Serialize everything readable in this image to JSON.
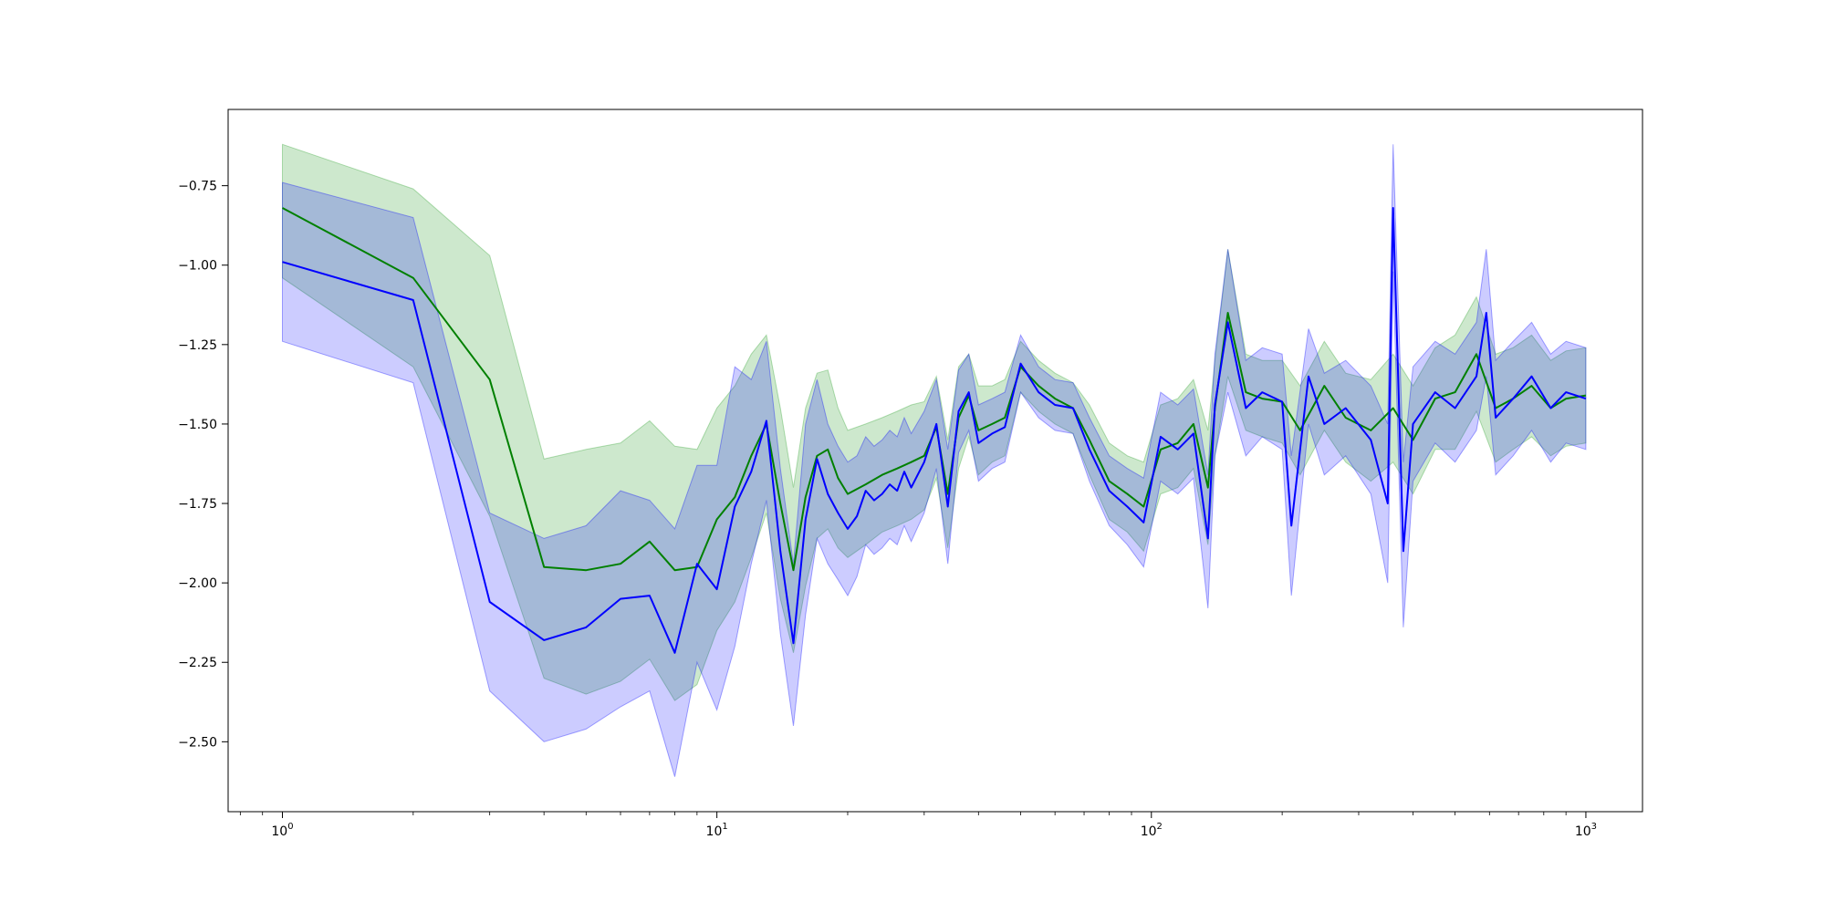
{
  "chart_data": {
    "type": "line",
    "title": "",
    "xlabel": "",
    "ylabel": "",
    "xscale": "log",
    "xlim": [
      0.75,
      1350
    ],
    "ylim": [
      -2.72,
      -0.51
    ],
    "grid": false,
    "legend": "none",
    "x_ticks": [
      {
        "value": 1,
        "base": "10",
        "exp": "0"
      },
      {
        "value": 10,
        "base": "10",
        "exp": "1"
      },
      {
        "value": 100,
        "base": "10",
        "exp": "2"
      },
      {
        "value": 1000,
        "base": "10",
        "exp": "3"
      }
    ],
    "y_ticks": [
      {
        "value": -0.75,
        "label": "−0.75"
      },
      {
        "value": -1.0,
        "label": "−1.00"
      },
      {
        "value": -1.25,
        "label": "−1.25"
      },
      {
        "value": -1.5,
        "label": "−1.50"
      },
      {
        "value": -1.75,
        "label": "−1.75"
      },
      {
        "value": -2.0,
        "label": "−2.00"
      },
      {
        "value": -2.25,
        "label": "−2.25"
      },
      {
        "value": -2.5,
        "label": "−2.50"
      }
    ],
    "series": [
      {
        "color": "#008000",
        "band_color": "#2ca02c",
        "band_opacity": 0.24,
        "x": [
          1,
          2,
          3,
          4,
          5,
          6,
          7,
          8,
          9,
          10,
          11,
          12,
          13,
          14,
          15,
          16,
          17,
          18,
          19,
          20,
          22,
          24,
          26,
          28,
          30,
          32,
          34,
          36,
          38,
          40,
          43,
          46,
          50,
          55,
          60,
          66,
          72,
          80,
          88,
          96,
          105,
          115,
          125,
          135,
          140,
          150,
          165,
          180,
          200,
          220,
          250,
          280,
          320,
          360,
          400,
          450,
          500,
          560,
          620,
          680,
          750,
          830,
          900,
          1000
        ],
        "y": [
          -0.82,
          -1.04,
          -1.36,
          -1.95,
          -1.96,
          -1.94,
          -1.87,
          -1.96,
          -1.95,
          -1.8,
          -1.73,
          -1.6,
          -1.5,
          -1.75,
          -1.96,
          -1.73,
          -1.6,
          -1.58,
          -1.67,
          -1.72,
          -1.69,
          -1.66,
          -1.64,
          -1.62,
          -1.6,
          -1.51,
          -1.72,
          -1.48,
          -1.41,
          -1.52,
          -1.5,
          -1.48,
          -1.32,
          -1.38,
          -1.42,
          -1.45,
          -1.55,
          -1.68,
          -1.72,
          -1.76,
          -1.58,
          -1.56,
          -1.5,
          -1.7,
          -1.45,
          -1.15,
          -1.4,
          -1.42,
          -1.43,
          -1.52,
          -1.38,
          -1.48,
          -1.52,
          -1.45,
          -1.55,
          -1.42,
          -1.4,
          -1.28,
          -1.45,
          -1.42,
          -1.38,
          -1.45,
          -1.42,
          -1.41
        ],
        "upper": [
          -0.62,
          -0.76,
          -0.97,
          -1.61,
          -1.58,
          -1.56,
          -1.49,
          -1.57,
          -1.58,
          -1.45,
          -1.38,
          -1.28,
          -1.22,
          -1.45,
          -1.7,
          -1.45,
          -1.34,
          -1.33,
          -1.45,
          -1.52,
          -1.5,
          -1.48,
          -1.46,
          -1.44,
          -1.43,
          -1.35,
          -1.55,
          -1.32,
          -1.28,
          -1.38,
          -1.38,
          -1.36,
          -1.24,
          -1.3,
          -1.34,
          -1.37,
          -1.44,
          -1.56,
          -1.6,
          -1.62,
          -1.44,
          -1.42,
          -1.36,
          -1.52,
          -1.3,
          -0.95,
          -1.28,
          -1.3,
          -1.3,
          -1.38,
          -1.24,
          -1.34,
          -1.36,
          -1.28,
          -1.38,
          -1.26,
          -1.22,
          -1.1,
          -1.28,
          -1.26,
          -1.22,
          -1.3,
          -1.27,
          -1.26
        ],
        "lower": [
          -1.04,
          -1.32,
          -1.79,
          -2.3,
          -2.35,
          -2.31,
          -2.24,
          -2.37,
          -2.32,
          -2.15,
          -2.06,
          -1.92,
          -1.78,
          -2.05,
          -2.22,
          -2.01,
          -1.86,
          -1.83,
          -1.89,
          -1.92,
          -1.88,
          -1.84,
          -1.82,
          -1.8,
          -1.77,
          -1.67,
          -1.89,
          -1.64,
          -1.54,
          -1.66,
          -1.62,
          -1.6,
          -1.4,
          -1.46,
          -1.5,
          -1.53,
          -1.66,
          -1.8,
          -1.84,
          -1.9,
          -1.72,
          -1.7,
          -1.64,
          -1.88,
          -1.6,
          -1.35,
          -1.52,
          -1.54,
          -1.56,
          -1.66,
          -1.52,
          -1.62,
          -1.68,
          -1.62,
          -1.72,
          -1.58,
          -1.58,
          -1.46,
          -1.62,
          -1.58,
          -1.54,
          -1.6,
          -1.57,
          -1.56
        ]
      },
      {
        "color": "#0000ff",
        "band_color": "#0000ff",
        "band_opacity": 0.2,
        "x": [
          1,
          2,
          3,
          4,
          5,
          6,
          7,
          8,
          9,
          10,
          11,
          12,
          13,
          14,
          15,
          16,
          17,
          18,
          19,
          20,
          21,
          22,
          23,
          24,
          25,
          26,
          27,
          28,
          30,
          32,
          34,
          36,
          38,
          40,
          43,
          46,
          50,
          55,
          60,
          66,
          72,
          80,
          88,
          96,
          105,
          115,
          125,
          135,
          140,
          150,
          165,
          180,
          200,
          210,
          230,
          250,
          280,
          320,
          350,
          360,
          380,
          400,
          450,
          500,
          560,
          590,
          620,
          680,
          750,
          830,
          900,
          1000
        ],
        "y": [
          -0.99,
          -1.11,
          -2.06,
          -2.18,
          -2.14,
          -2.05,
          -2.04,
          -2.22,
          -1.94,
          -2.02,
          -1.76,
          -1.65,
          -1.49,
          -1.9,
          -2.19,
          -1.8,
          -1.61,
          -1.72,
          -1.78,
          -1.83,
          -1.79,
          -1.71,
          -1.74,
          -1.72,
          -1.69,
          -1.71,
          -1.65,
          -1.7,
          -1.62,
          -1.5,
          -1.76,
          -1.46,
          -1.4,
          -1.56,
          -1.53,
          -1.51,
          -1.31,
          -1.4,
          -1.44,
          -1.45,
          -1.58,
          -1.71,
          -1.76,
          -1.81,
          -1.54,
          -1.58,
          -1.53,
          -1.86,
          -1.44,
          -1.18,
          -1.45,
          -1.4,
          -1.43,
          -1.82,
          -1.35,
          -1.5,
          -1.45,
          -1.55,
          -1.75,
          -0.82,
          -1.9,
          -1.5,
          -1.4,
          -1.45,
          -1.35,
          -1.15,
          -1.48,
          -1.42,
          -1.35,
          -1.45,
          -1.4,
          -1.42
        ],
        "upper": [
          -0.74,
          -0.85,
          -1.78,
          -1.86,
          -1.82,
          -1.71,
          -1.74,
          -1.83,
          -1.63,
          -1.63,
          -1.32,
          -1.36,
          -1.24,
          -1.64,
          -1.94,
          -1.5,
          -1.36,
          -1.5,
          -1.57,
          -1.62,
          -1.6,
          -1.54,
          -1.57,
          -1.55,
          -1.52,
          -1.54,
          -1.48,
          -1.53,
          -1.46,
          -1.36,
          -1.58,
          -1.33,
          -1.28,
          -1.44,
          -1.42,
          -1.4,
          -1.22,
          -1.32,
          -1.36,
          -1.37,
          -1.48,
          -1.6,
          -1.64,
          -1.67,
          -1.4,
          -1.44,
          -1.39,
          -1.66,
          -1.28,
          -0.95,
          -1.3,
          -1.26,
          -1.28,
          -1.6,
          -1.2,
          -1.34,
          -1.3,
          -1.38,
          -1.5,
          -0.62,
          -1.62,
          -1.32,
          -1.24,
          -1.28,
          -1.18,
          -0.95,
          -1.3,
          -1.24,
          -1.18,
          -1.28,
          -1.24,
          -1.26
        ],
        "lower": [
          -1.24,
          -1.37,
          -2.34,
          -2.5,
          -2.46,
          -2.39,
          -2.34,
          -2.61,
          -2.25,
          -2.4,
          -2.2,
          -1.94,
          -1.74,
          -2.16,
          -2.45,
          -2.1,
          -1.86,
          -1.94,
          -1.99,
          -2.04,
          -1.98,
          -1.88,
          -1.91,
          -1.89,
          -1.86,
          -1.88,
          -1.82,
          -1.87,
          -1.78,
          -1.64,
          -1.94,
          -1.59,
          -1.52,
          -1.68,
          -1.64,
          -1.62,
          -1.4,
          -1.48,
          -1.52,
          -1.53,
          -1.68,
          -1.82,
          -1.88,
          -1.95,
          -1.68,
          -1.72,
          -1.67,
          -2.08,
          -1.6,
          -1.4,
          -1.6,
          -1.54,
          -1.58,
          -2.04,
          -1.5,
          -1.66,
          -1.6,
          -1.72,
          -2.0,
          -1.02,
          -2.14,
          -1.68,
          -1.56,
          -1.62,
          -1.52,
          -1.35,
          -1.66,
          -1.6,
          -1.52,
          -1.62,
          -1.56,
          -1.58
        ]
      }
    ]
  }
}
